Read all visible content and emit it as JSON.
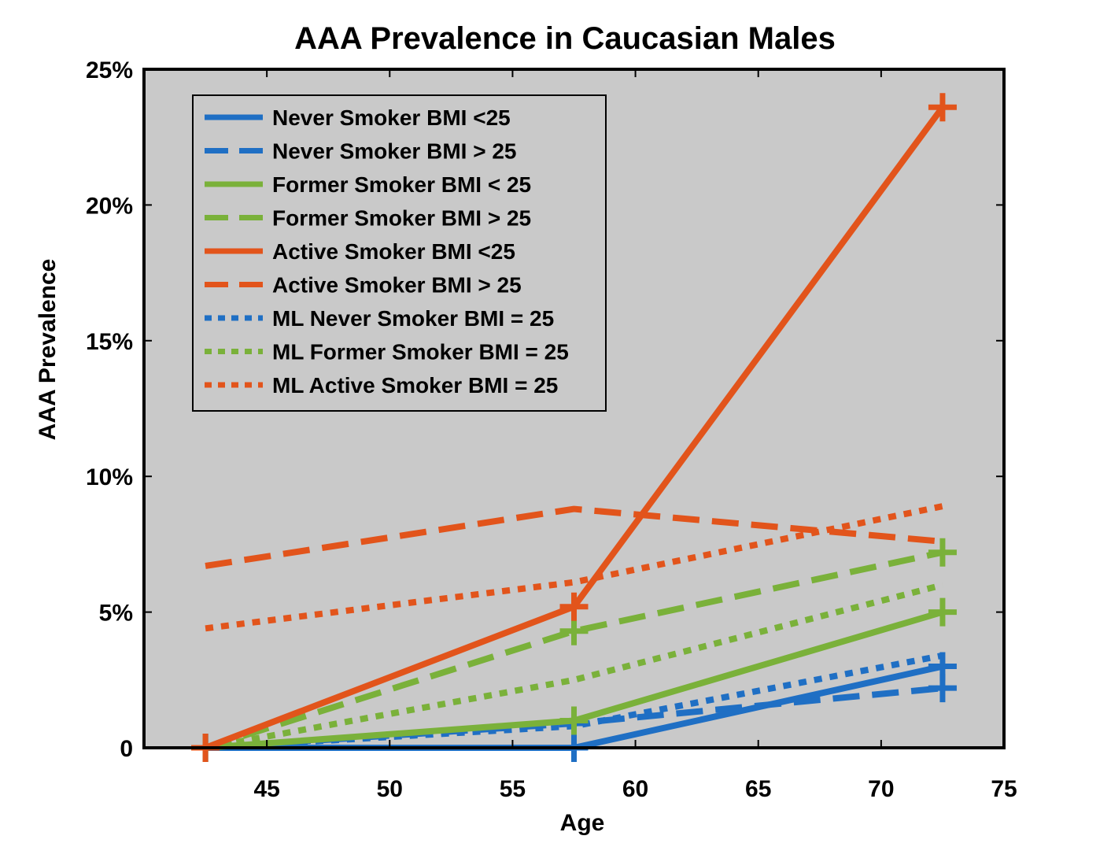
{
  "chart_data": {
    "type": "line",
    "title": "AAA Prevalence in Caucasian Males",
    "xlabel": "Age",
    "ylabel": "AAA Prevalence",
    "xlim": [
      40,
      75
    ],
    "ylim": [
      0,
      0.25
    ],
    "x_ticks": [
      45,
      50,
      55,
      60,
      65,
      70,
      75
    ],
    "x_tick_labels": [
      "45",
      "50",
      "55",
      "60",
      "65",
      "70",
      "75"
    ],
    "y_ticks": [
      0,
      0.05,
      0.1,
      0.15,
      0.2,
      0.25
    ],
    "y_tick_labels": [
      "0",
      "5%",
      "10%",
      "15%",
      "20%",
      "25%"
    ],
    "grid": false,
    "legend_position": "top-left",
    "background": "#c9c9c9",
    "series": [
      {
        "name": "Never Smoker BMI <25",
        "color": "#1f6fc4",
        "style": "solid",
        "marker": "plus",
        "x": [
          42.5,
          57.5,
          72.5
        ],
        "y": [
          0.0,
          0.0,
          0.03
        ]
      },
      {
        "name": "Never Smoker BMI > 25",
        "color": "#1f6fc4",
        "style": "dashed",
        "marker": "plus",
        "x": [
          42.5,
          57.5,
          72.5
        ],
        "y": [
          0.0,
          0.009,
          0.022
        ]
      },
      {
        "name": "Former Smoker BMI < 25",
        "color": "#7ab13a",
        "style": "solid",
        "marker": "plus",
        "x": [
          42.5,
          57.5,
          72.5
        ],
        "y": [
          0.0,
          0.01,
          0.05
        ]
      },
      {
        "name": "Former Smoker BMI > 25",
        "color": "#7ab13a",
        "style": "dashed",
        "marker": "plus",
        "x": [
          42.5,
          57.5,
          72.5
        ],
        "y": [
          0.0,
          0.043,
          0.072
        ]
      },
      {
        "name": "Active Smoker BMI <25",
        "color": "#e2541b",
        "style": "solid",
        "marker": "plus",
        "x": [
          42.5,
          57.5,
          72.5
        ],
        "y": [
          0.0,
          0.052,
          0.236
        ]
      },
      {
        "name": "Active Smoker BMI > 25",
        "color": "#e2541b",
        "style": "dashed",
        "marker": "none",
        "x": [
          42.5,
          57.5,
          72.5
        ],
        "y": [
          0.067,
          0.088,
          0.076
        ]
      },
      {
        "name": "ML Never Smoker BMI = 25",
        "color": "#1f6fc4",
        "style": "dotted",
        "marker": "none",
        "x": [
          42.5,
          57.5,
          72.5
        ],
        "y": [
          0.0,
          0.008,
          0.034
        ]
      },
      {
        "name": "ML Former Smoker BMI = 25",
        "color": "#7ab13a",
        "style": "dotted",
        "marker": "none",
        "x": [
          42.5,
          57.5,
          72.5
        ],
        "y": [
          0.0,
          0.025,
          0.06
        ]
      },
      {
        "name": "ML Active Smoker BMI = 25",
        "color": "#e2541b",
        "style": "dotted",
        "marker": "none",
        "x": [
          42.5,
          57.5,
          72.5
        ],
        "y": [
          0.044,
          0.061,
          0.089
        ]
      }
    ]
  }
}
